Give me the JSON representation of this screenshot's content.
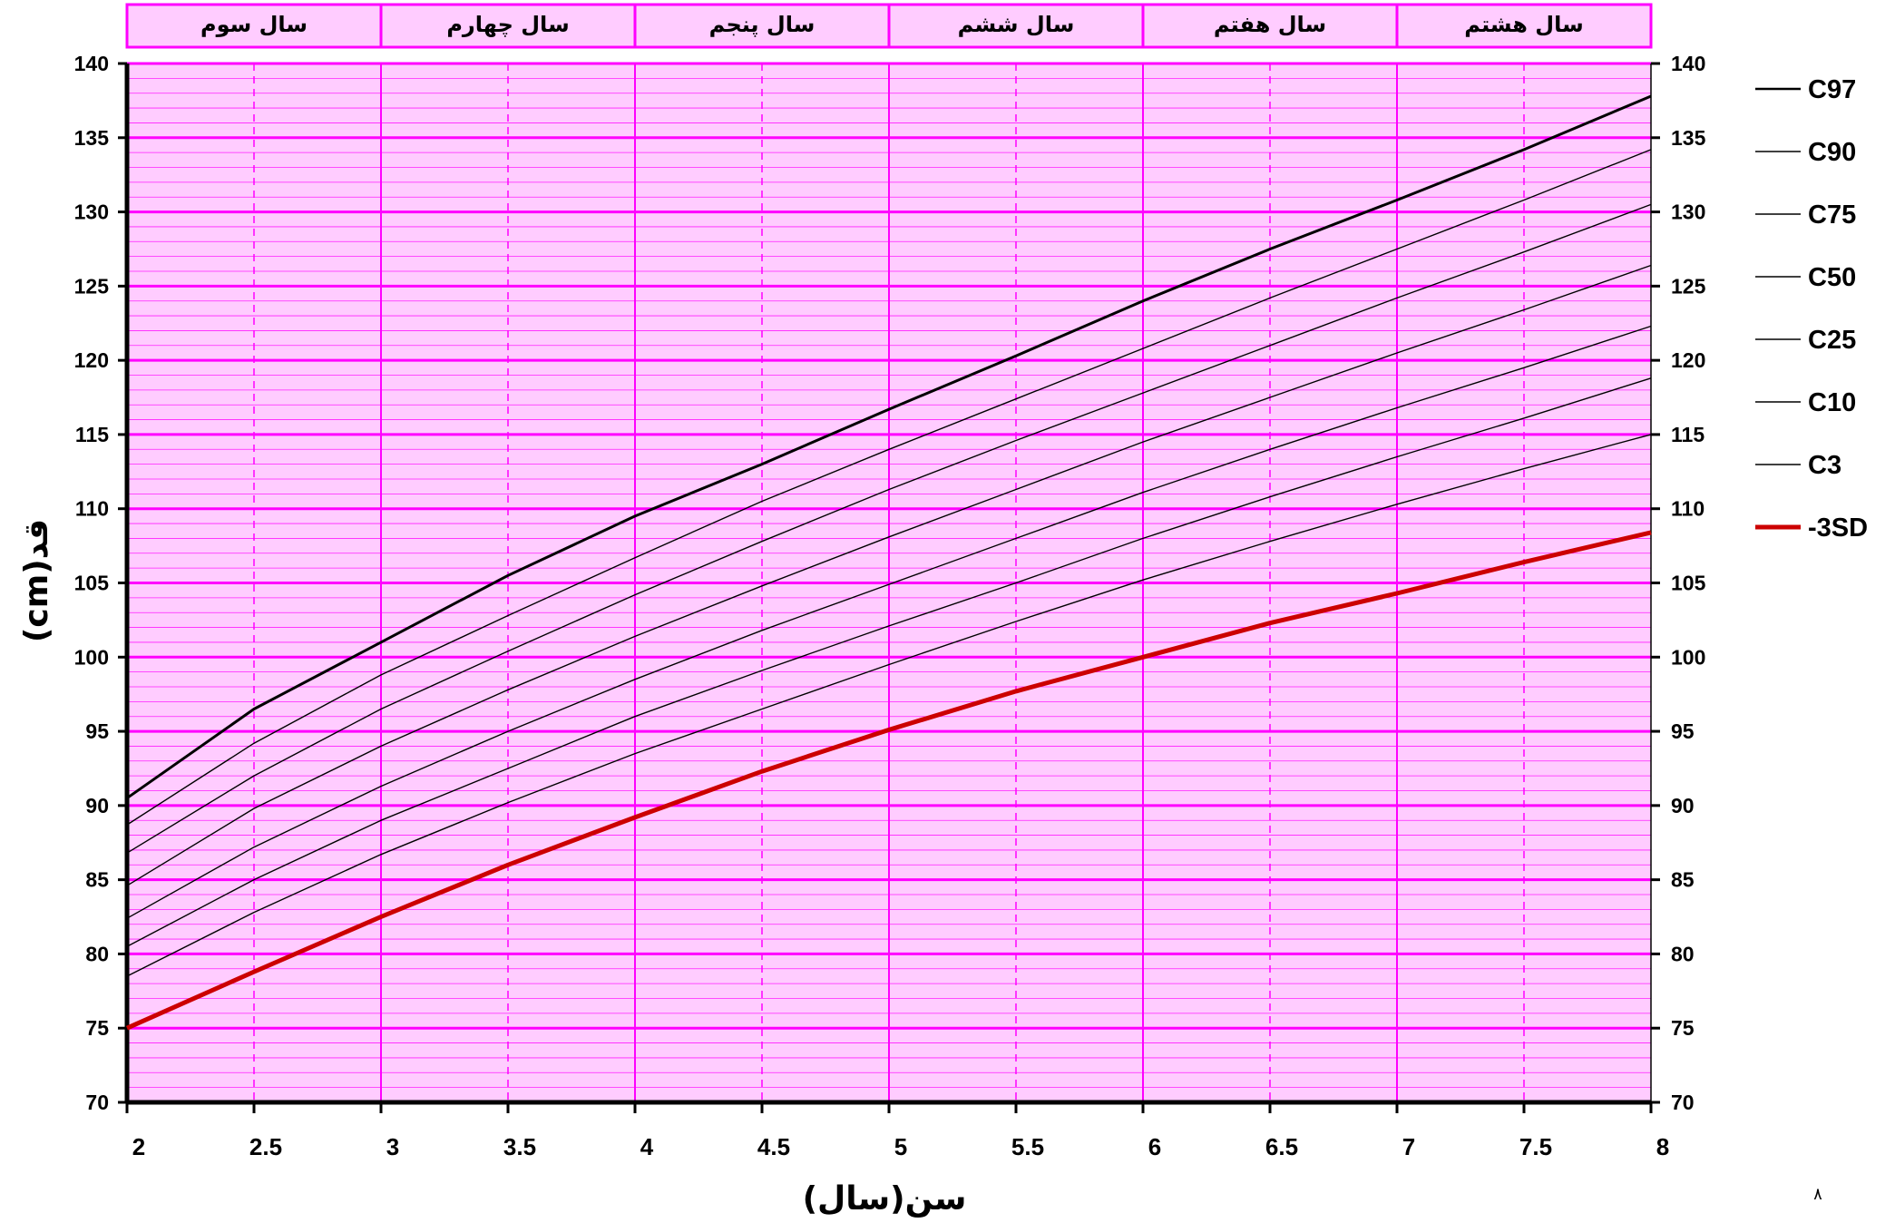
{
  "chart_data": {
    "type": "line",
    "xlabel": "سن(سال)",
    "ylabel": "قد(cm)",
    "xlim": [
      2,
      8
    ],
    "ylim": [
      70,
      140
    ],
    "x_ticks": [
      "2",
      "2.5",
      "3",
      "3.5",
      "4",
      "4.5",
      "5",
      "5.5",
      "6",
      "6.5",
      "7",
      "7.5",
      "8"
    ],
    "y_ticks": [
      "70",
      "75",
      "80",
      "85",
      "90",
      "95",
      "100",
      "105",
      "110",
      "115",
      "120",
      "125",
      "130",
      "135",
      "140"
    ],
    "minor_y_step": 1,
    "y_ticks_both_sides": true,
    "background_color": "#FFCCFF",
    "grid_color": "#FF00FF",
    "grid": true,
    "year_bands": [
      {
        "label": "سال سوم",
        "range": [
          2,
          3
        ]
      },
      {
        "label": "سال چهارم",
        "range": [
          3,
          4
        ]
      },
      {
        "label": "سال پنجم",
        "range": [
          4,
          5
        ]
      },
      {
        "label": "سال ششم",
        "range": [
          5,
          6
        ]
      },
      {
        "label": "سال هفتم",
        "range": [
          6,
          7
        ]
      },
      {
        "label": "سال هشتم",
        "range": [
          7,
          8
        ]
      }
    ],
    "legend_position": "right",
    "x": [
      2,
      2.5,
      3,
      3.5,
      4,
      4.5,
      5,
      5.5,
      6,
      6.5,
      7,
      7.5,
      8
    ],
    "series": [
      {
        "name": "C97",
        "color": "#000000",
        "width": "thick",
        "values": [
          90.5,
          96.5,
          101.0,
          105.5,
          109.5,
          113.0,
          116.7,
          120.3,
          124.0,
          127.5,
          130.8,
          134.2,
          137.8
        ]
      },
      {
        "name": "C90",
        "color": "#000000",
        "width": "thin",
        "values": [
          88.7,
          94.2,
          98.8,
          102.8,
          106.7,
          110.5,
          114.0,
          117.4,
          120.8,
          124.2,
          127.5,
          130.8,
          134.2
        ]
      },
      {
        "name": "C75",
        "color": "#000000",
        "width": "thin",
        "values": [
          86.8,
          92.0,
          96.5,
          100.4,
          104.2,
          107.8,
          111.3,
          114.6,
          117.8,
          121.0,
          124.2,
          127.3,
          130.5
        ]
      },
      {
        "name": "C50",
        "color": "#000000",
        "width": "thin",
        "values": [
          84.6,
          89.8,
          94.0,
          97.8,
          101.4,
          104.8,
          108.1,
          111.3,
          114.5,
          117.5,
          120.5,
          123.4,
          126.4
        ]
      },
      {
        "name": "C25",
        "color": "#000000",
        "width": "thin",
        "values": [
          82.4,
          87.2,
          91.3,
          95.0,
          98.5,
          101.8,
          104.9,
          108.0,
          111.1,
          114.0,
          116.8,
          119.5,
          122.3
        ]
      },
      {
        "name": "C10",
        "color": "#000000",
        "width": "thin",
        "values": [
          80.5,
          85.0,
          89.0,
          92.5,
          96.0,
          99.1,
          102.1,
          105.0,
          108.0,
          110.8,
          113.5,
          116.1,
          118.8
        ]
      },
      {
        "name": "C3",
        "color": "#000000",
        "width": "thin",
        "values": [
          78.5,
          82.8,
          86.7,
          90.2,
          93.5,
          96.5,
          99.5,
          102.4,
          105.2,
          107.8,
          110.3,
          112.7,
          115.0
        ]
      },
      {
        "name": "-3SD",
        "color": "#CC0000",
        "width": "bold",
        "values": [
          75.0,
          78.8,
          82.5,
          86.0,
          89.2,
          92.3,
          95.1,
          97.7,
          100.0,
          102.3,
          104.3,
          106.4,
          108.4
        ]
      }
    ]
  },
  "page_number": "۸"
}
